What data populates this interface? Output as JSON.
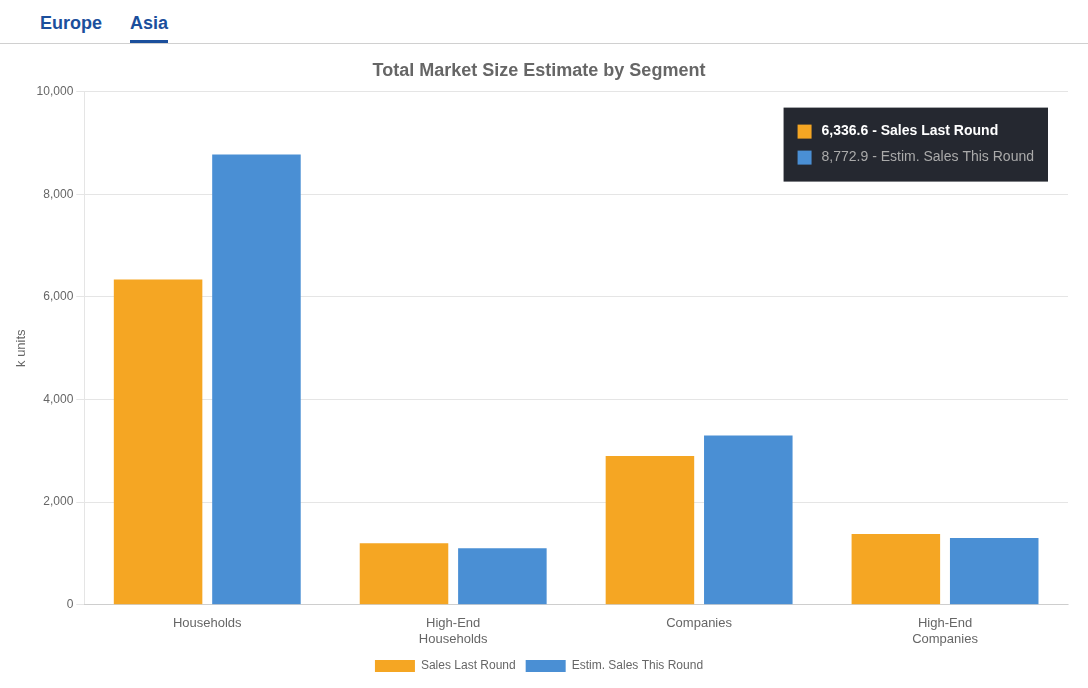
{
  "chart_data": {
    "type": "bar",
    "title": "Total Market Size Estimate by Segment",
    "ylabel": "k units",
    "categories": [
      "Households",
      "High-End\nHouseholds",
      "Companies",
      "High-End\nCompanies"
    ],
    "series": [
      {
        "name": "Sales Last Round",
        "color": "#F5A623",
        "values": [
          6336.6,
          1200,
          2900,
          1380
        ]
      },
      {
        "name": "Estim. Sales This Round",
        "color": "#4A8FD4",
        "values": [
          8772.9,
          1100,
          3300,
          1300
        ]
      }
    ],
    "ylim": [
      0,
      10000
    ],
    "yticks": [
      0,
      {
        "value": 2000,
        "label": "2,000"
      },
      {
        "value": 4000,
        "label": "4,000"
      },
      {
        "value": 6000,
        "label": "6,000"
      },
      {
        "value": 8000,
        "label": "8,000"
      },
      {
        "value": 10000,
        "label": "10,000"
      }
    ],
    "grid": true,
    "legend": "bottom",
    "annotations": [
      "Europe",
      "Asia",
      "6,336.6 - Sales Last Round",
      "8,772.9 - Estim. Sales This Round"
    ]
  }
}
